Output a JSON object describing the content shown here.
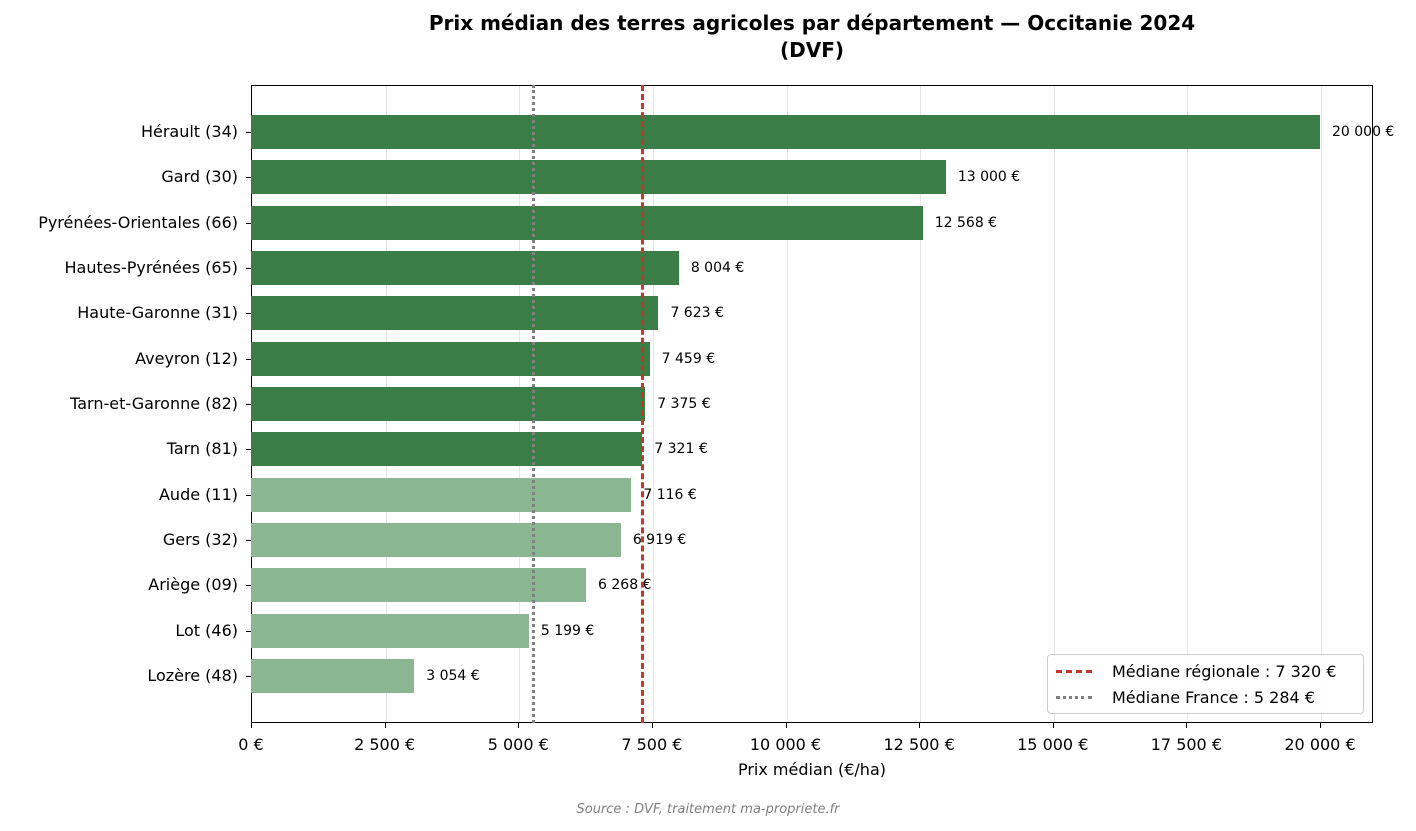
{
  "chart_data": {
    "type": "bar",
    "orientation": "horizontal",
    "title": "Prix médian des terres agricoles par département — Occitanie 2024",
    "title_line2": "(DVF)",
    "xlabel": "Prix médian (€/ha)",
    "ylabel": "",
    "xlim": [
      0,
      21000
    ],
    "grid": "x",
    "legend_position": "lower right",
    "categories": [
      "Hérault (34)",
      "Gard (30)",
      "Pyrénées-Orientales (66)",
      "Hautes-Pyrénées (65)",
      "Haute-Garonne (31)",
      "Aveyron (12)",
      "Tarn-et-Garonne (82)",
      "Tarn (81)",
      "Aude (11)",
      "Gers (32)",
      "Ariège (09)",
      "Lot (46)",
      "Lozère (48)"
    ],
    "values": [
      20000,
      13000,
      12568,
      8004,
      7623,
      7459,
      7375,
      7321,
      7116,
      6919,
      6268,
      5199,
      3054
    ],
    "value_labels": [
      "20 000 €",
      "13 000 €",
      "12 568 €",
      "8 004 €",
      "7 623 €",
      "7 459 €",
      "7 375 €",
      "7 321 €",
      "7 116 €",
      "6 919 €",
      "6 268 €",
      "5 199 €",
      "3 054 €"
    ],
    "bar_colors": {
      "above_median": "#3a7d47",
      "below_median": "#8ab792"
    },
    "xticks": [
      0,
      2500,
      5000,
      7500,
      10000,
      12500,
      15000,
      17500,
      20000
    ],
    "xtick_labels": [
      "0 €",
      "2 500 €",
      "5 000 €",
      "7 500 €",
      "10 000 €",
      "12 500 €",
      "15 000 €",
      "17 500 €",
      "20 000 €"
    ],
    "reference_lines": [
      {
        "name": "Médiane régionale : 7 320 €",
        "value": 7320,
        "style": "dashed",
        "color": "#c0392b"
      },
      {
        "name": "Médiane France : 5 284 €",
        "value": 5284,
        "style": "dotted",
        "color": "#808080"
      }
    ],
    "source": "Source : DVF, traitement ma-propriete.fr"
  }
}
